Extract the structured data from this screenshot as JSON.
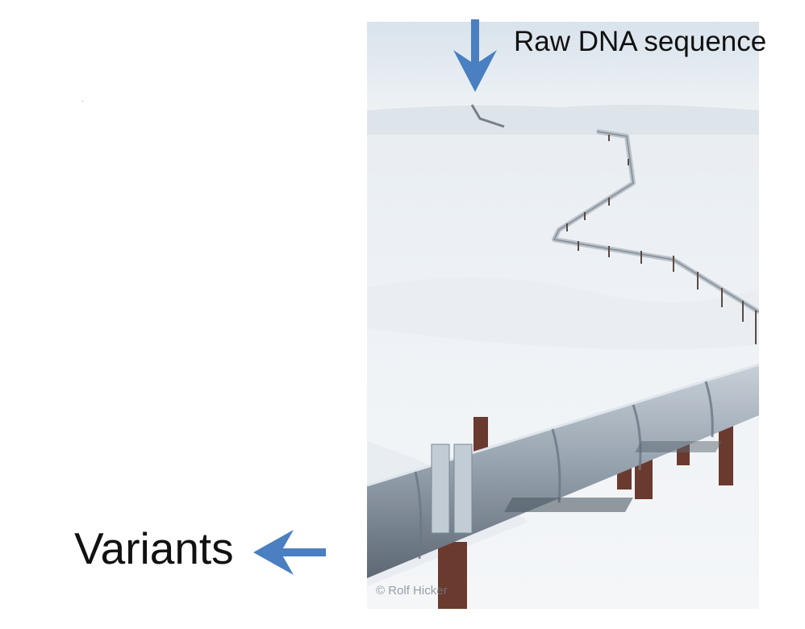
{
  "labels": {
    "input": "Raw DNA sequence",
    "output": "Variants"
  },
  "photo": {
    "credit": "© Rolf Hicker",
    "subject": "pipeline"
  },
  "icons": {
    "down_arrow": "arrow-down-icon",
    "left_arrow": "arrow-left-icon"
  },
  "colors": {
    "arrow": "#4a7fc1"
  }
}
